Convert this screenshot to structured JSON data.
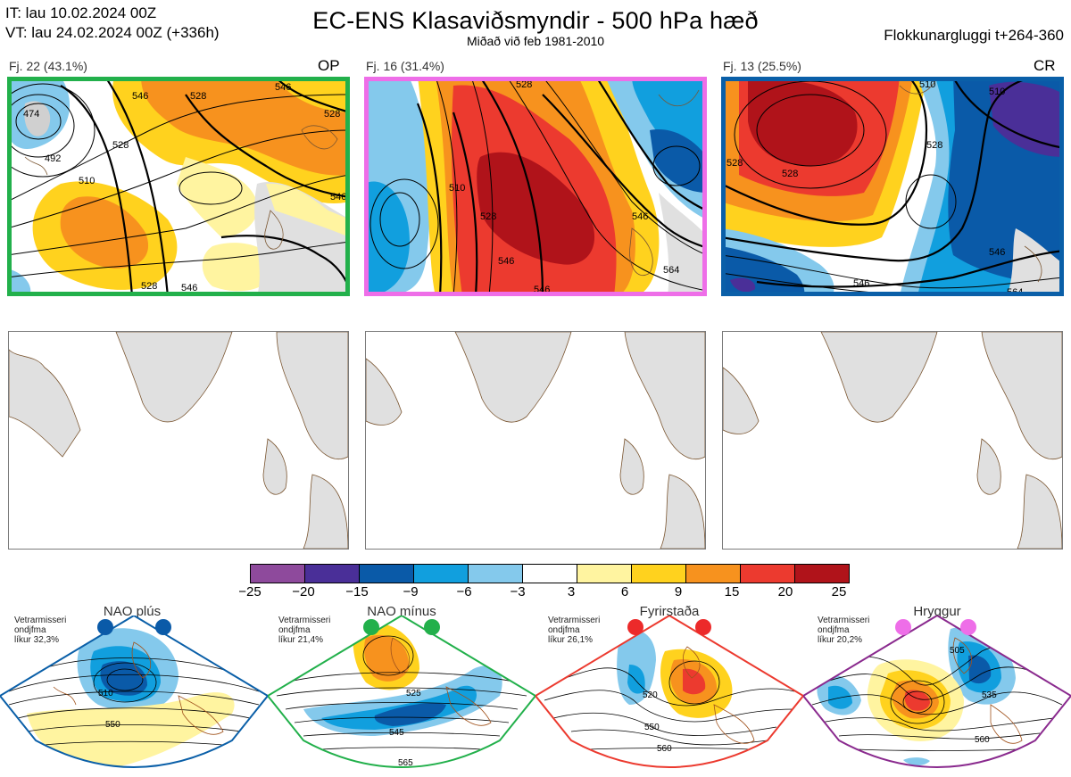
{
  "header": {
    "it_line": "IT: lau 10.02.2024 00Z",
    "vt_line": "VT: lau 24.02.2024 00Z  (+336h)",
    "title": "EC-ENS Klasaviðsmyndir - 500 hPa hæð",
    "subtitle": "Miðað við feb 1981-2010",
    "window": "Flokkunargluggi t+264-360"
  },
  "panels": [
    {
      "label": "Fj. 22 (43.1%)",
      "tag": "OP",
      "frame_color": "#22b04b",
      "contour_labels": [
        "474",
        "492",
        "510",
        "528",
        "528",
        "546",
        "546",
        "546",
        "528",
        "528",
        "546"
      ]
    },
    {
      "label": "Fj. 16 (31.4%)",
      "tag": "",
      "frame_color": "#ee6ee8",
      "contour_labels": [
        "528",
        "510",
        "528",
        "546",
        "546",
        "564",
        "546"
      ]
    },
    {
      "label": "Fj. 13 (25.5%)",
      "tag": "CR",
      "frame_color": "#0a5fa8",
      "contour_labels": [
        "510",
        "528",
        "510",
        "528",
        "528",
        "546",
        "546",
        "564"
      ]
    }
  ],
  "colorbar": {
    "colors": [
      "#8e4a9c",
      "#4a2f98",
      "#0a5aa8",
      "#119fde",
      "#84c9ec",
      "#ffffff",
      "#fff4a0",
      "#ffd21e",
      "#f7921e",
      "#ec3a2f",
      "#b0131a"
    ],
    "ticks": [
      "−25",
      "−20",
      "−15",
      "−9",
      "−6",
      "−3",
      "3",
      "6",
      "9",
      "15",
      "20",
      "25"
    ]
  },
  "regimes": [
    {
      "name": "NAO plús",
      "info": [
        "Vetrarmisseri",
        "ondjfma",
        "líkur 32,3%"
      ],
      "frame_color": "#0a5fa8",
      "dot_color": "#0a5aa8",
      "labels": [
        "510",
        "550"
      ]
    },
    {
      "name": "NAO mínus",
      "info": [
        "Vetrarmisseri",
        "ondjfma",
        "líkur 21,4%"
      ],
      "frame_color": "#22b04b",
      "dot_color": "#22b04b",
      "labels": [
        "525",
        "545",
        "565"
      ]
    },
    {
      "name": "Fyrirstaða",
      "info": [
        "Vetrarmisseri",
        "ondjfma",
        "líkur 26,1%"
      ],
      "frame_color": "#ec3a2f",
      "dot_color": "#ec2a2a",
      "labels": [
        "520",
        "550",
        "560"
      ]
    },
    {
      "name": "Hryggur",
      "info": [
        "Vetrarmisseri",
        "ondjfma",
        "líkur 20,2%"
      ],
      "frame_color": "#8a2a8e",
      "dot_color": "#ee6ee8",
      "labels": [
        "505",
        "535",
        "560"
      ]
    }
  ]
}
